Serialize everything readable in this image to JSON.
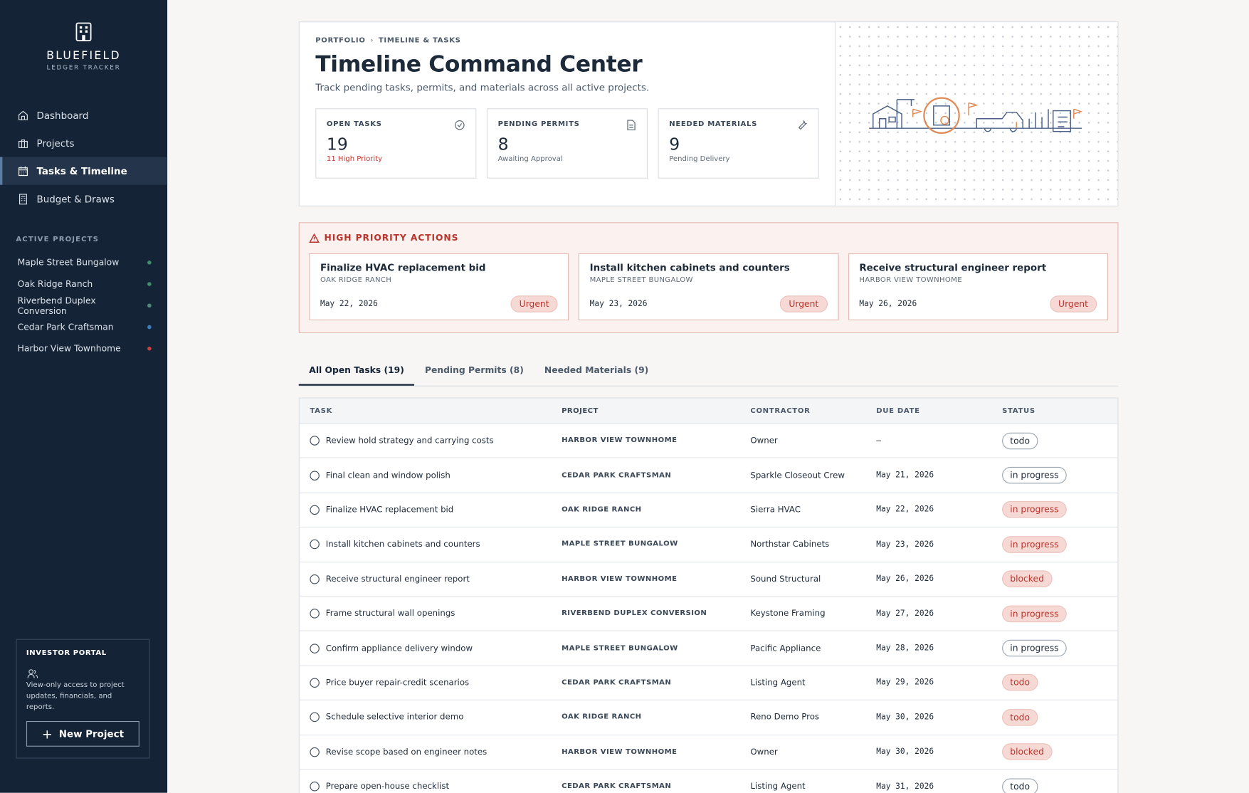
{
  "sidebar": {
    "brand": "BLUEFIELD",
    "brand_sub": "LEDGER TRACKER",
    "nav": [
      {
        "label": "Dashboard",
        "active": false
      },
      {
        "label": "Projects",
        "active": false
      },
      {
        "label": "Tasks & Timeline",
        "active": true
      },
      {
        "label": "Budget & Draws",
        "active": false
      }
    ],
    "projects_heading": "ACTIVE PROJECTS",
    "projects": [
      {
        "name": "Maple Street Bungalow",
        "color": "#3f8f6b"
      },
      {
        "name": "Oak Ridge Ranch",
        "color": "#3f8f6b"
      },
      {
        "name": "Riverbend Duplex Conversion",
        "color": "#4f8a7a"
      },
      {
        "name": "Cedar Park Craftsman",
        "color": "#3a7fc4"
      },
      {
        "name": "Harbor View Townhome",
        "color": "#c9403a"
      }
    ],
    "portal": {
      "title": "INVESTOR PORTAL",
      "text": "View-only access to project updates, financials, and reports.",
      "button": "New Project"
    }
  },
  "header": {
    "breadcrumb": [
      "PORTFOLIO",
      "TIMELINE & TASKS"
    ],
    "title": "Timeline Command Center",
    "subtitle": "Track pending tasks, permits, and materials across all active projects.",
    "stats": [
      {
        "label": "OPEN TASKS",
        "value": 19,
        "note": "11 High Priority",
        "alert": true
      },
      {
        "label": "PENDING PERMITS",
        "value": 8,
        "note": "Awaiting Approval",
        "alert": false
      },
      {
        "label": "NEEDED MATERIALS",
        "value": 9,
        "note": "Pending Delivery",
        "alert": false
      }
    ]
  },
  "priority": {
    "heading": "HIGH PRIORITY ACTIONS",
    "items": [
      {
        "task": "Finalize HVAC replacement bid",
        "project": "OAK RIDGE RANCH",
        "date": "May 22, 2026",
        "badge": "Urgent"
      },
      {
        "task": "Install kitchen cabinets and counters",
        "project": "MAPLE STREET BUNGALOW",
        "date": "May 23, 2026",
        "badge": "Urgent"
      },
      {
        "task": "Receive structural engineer report",
        "project": "HARBOR VIEW TOWNHOME",
        "date": "May 26, 2026",
        "badge": "Urgent"
      }
    ]
  },
  "tabs": [
    {
      "label": "All Open Tasks (19)",
      "active": true
    },
    {
      "label": "Pending Permits (8)",
      "active": false
    },
    {
      "label": "Needed Materials (9)",
      "active": false
    }
  ],
  "table": {
    "columns": [
      "TASK",
      "PROJECT",
      "CONTRACTOR",
      "DUE DATE",
      "STATUS"
    ],
    "rows": [
      {
        "cells": [
          "Review hold strategy and carrying costs",
          "HARBOR VIEW TOWNHOME",
          "Owner",
          "–",
          "todo"
        ],
        "alert": false
      },
      {
        "cells": [
          "Final clean and window polish",
          "CEDAR PARK CRAFTSMAN",
          "Sparkle Closeout Crew",
          "May 21, 2026",
          "in progress"
        ],
        "alert": false
      },
      {
        "cells": [
          "Finalize HVAC replacement bid",
          "OAK RIDGE RANCH",
          "Sierra HVAC",
          "May 22, 2026",
          "in progress"
        ],
        "alert": true
      },
      {
        "cells": [
          "Install kitchen cabinets and counters",
          "MAPLE STREET BUNGALOW",
          "Northstar Cabinets",
          "May 23, 2026",
          "in progress"
        ],
        "alert": true
      },
      {
        "cells": [
          "Receive structural engineer report",
          "HARBOR VIEW TOWNHOME",
          "Sound Structural",
          "May 26, 2026",
          "blocked"
        ],
        "alert": true
      },
      {
        "cells": [
          "Frame structural wall openings",
          "RIVERBEND DUPLEX CONVERSION",
          "Keystone Framing",
          "May 27, 2026",
          "in progress"
        ],
        "alert": true
      },
      {
        "cells": [
          "Confirm appliance delivery window",
          "MAPLE STREET BUNGALOW",
          "Pacific Appliance",
          "May 28, 2026",
          "in progress"
        ],
        "alert": false
      },
      {
        "cells": [
          "Price buyer repair-credit scenarios",
          "CEDAR PARK CRAFTSMAN",
          "Listing Agent",
          "May 29, 2026",
          "todo"
        ],
        "alert": true
      },
      {
        "cells": [
          "Schedule selective interior demo",
          "OAK RIDGE RANCH",
          "Reno Demo Pros",
          "May 30, 2026",
          "todo"
        ],
        "alert": true
      },
      {
        "cells": [
          "Revise scope based on engineer notes",
          "HARBOR VIEW TOWNHOME",
          "Owner",
          "May 30, 2026",
          "blocked"
        ],
        "alert": true
      },
      {
        "cells": [
          "Prepare open-house checklist",
          "CEDAR PARK CRAFTSMAN",
          "Listing Agent",
          "May 31, 2026",
          "todo"
        ],
        "alert": false
      }
    ]
  }
}
